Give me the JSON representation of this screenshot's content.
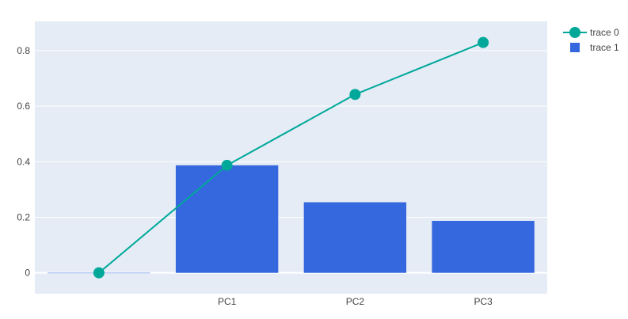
{
  "chart_data": {
    "type": "bar",
    "categories": [
      "",
      "PC1",
      "PC2",
      "PC3"
    ],
    "series": [
      {
        "name": "trace 0",
        "type": "line",
        "values": [
          0,
          0.387,
          0.642,
          0.829
        ],
        "color": "#00a89a"
      },
      {
        "name": "trace 1",
        "type": "bar",
        "values": [
          0,
          0.387,
          0.254,
          0.187
        ],
        "color": "#3567de"
      }
    ],
    "yticks": [
      0,
      0.2,
      0.4,
      0.6,
      0.8
    ],
    "ytick_labels": [
      "0",
      "0.2",
      "0.4",
      "0.6",
      "0.8"
    ],
    "ylim": [
      -0.075,
      0.905
    ],
    "grid": true,
    "legend_position": "top-right",
    "plot_background": "#e5ecf6"
  }
}
